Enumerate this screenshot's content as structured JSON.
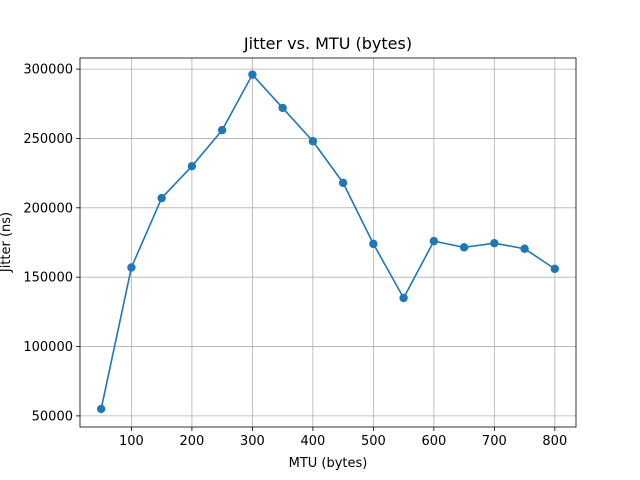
{
  "chart_data": {
    "type": "line",
    "title": "Jitter vs. MTU (bytes)",
    "xlabel": "MTU (bytes)",
    "ylabel": "Jitter (ns)",
    "x": [
      50,
      100,
      150,
      200,
      250,
      300,
      350,
      400,
      450,
      500,
      550,
      600,
      650,
      700,
      750,
      800
    ],
    "series": [
      {
        "values": [
          55000,
          157000,
          207000,
          230000,
          256000,
          296000,
          272000,
          248000,
          218000,
          174000,
          135000,
          176000,
          171500,
          174500,
          170500,
          156000
        ],
        "color": "#1f77b4",
        "marker": "circle"
      }
    ],
    "xlim": [
      15,
      835
    ],
    "ylim": [
      42000,
      308000
    ],
    "xticks": [
      100,
      200,
      300,
      400,
      500,
      600,
      700,
      800
    ],
    "xtick_labels": [
      "100",
      "200",
      "300",
      "400",
      "500",
      "600",
      "700",
      "800"
    ],
    "yticks": [
      50000,
      100000,
      150000,
      200000,
      250000,
      300000
    ],
    "ytick_labels": [
      "50000",
      "100000",
      "150000",
      "200000",
      "250000",
      "300000"
    ],
    "grid": true
  }
}
